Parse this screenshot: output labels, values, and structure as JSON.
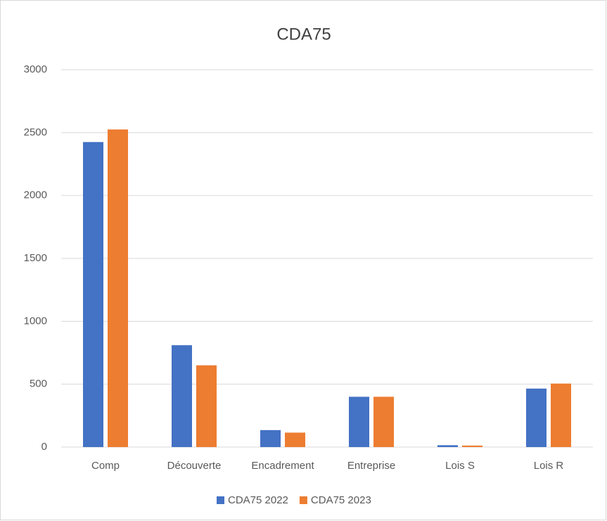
{
  "chart_data": {
    "type": "bar",
    "title": "CDA75",
    "categories": [
      "Comp",
      "Découverte",
      "Encadrement",
      "Entreprise",
      "Lois S",
      "Lois R"
    ],
    "series": [
      {
        "name": "CDA75 2022",
        "color": "#4472c4",
        "values": [
          2425,
          810,
          135,
          400,
          15,
          465
        ]
      },
      {
        "name": "CDA75 2023",
        "color": "#ed7d31",
        "values": [
          2525,
          650,
          115,
          400,
          12,
          505
        ]
      }
    ],
    "ylim": [
      0,
      3000
    ],
    "yticks": [
      0,
      500,
      1000,
      1500,
      2000,
      2500,
      3000
    ],
    "grid": true,
    "legend": "bottom"
  }
}
